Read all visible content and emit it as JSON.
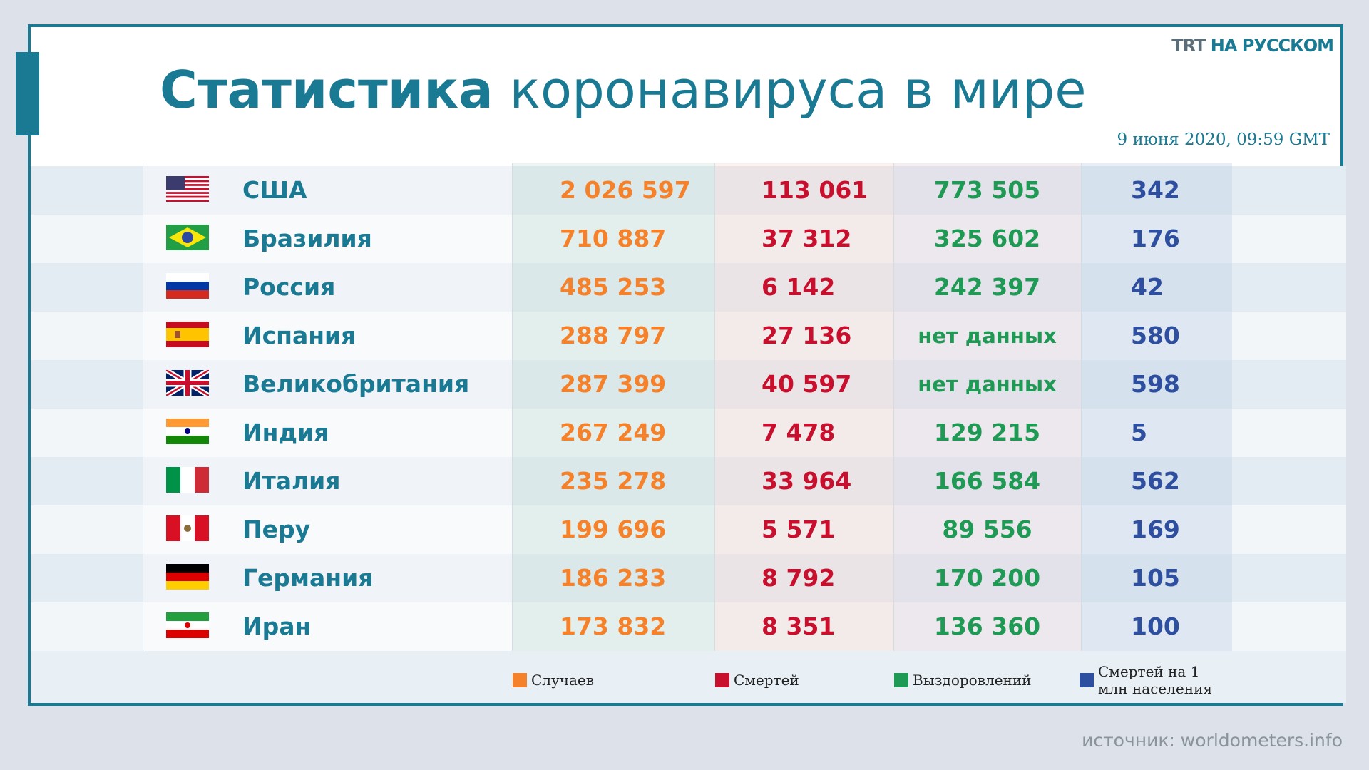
{
  "header": {
    "title_bold": "Статистика",
    "title_rest": "коронавируса в мире",
    "logo_bold": "TRT",
    "logo_rest": "НА РУССКОМ",
    "date": "9 июня 2020, 09:59 GMT"
  },
  "table": {
    "rows": [
      [
        "США",
        "2 026 597",
        "113 061",
        "773 505",
        "342"
      ],
      [
        "Бразилия",
        "710 887",
        "37 312",
        "325 602",
        "176"
      ],
      [
        "Россия",
        "485 253",
        "6 142",
        "242 397",
        "42"
      ],
      [
        "Испания",
        "288 797",
        "27 136",
        "нет данных",
        "580"
      ],
      [
        "Великобритания",
        "287 399",
        "40 597",
        "нет данных",
        "598"
      ],
      [
        "Индия",
        "267 249",
        "7 478",
        "129 215",
        "5"
      ],
      [
        "Италия",
        "235 278",
        "33 964",
        "166 584",
        "562"
      ],
      [
        "Перу",
        "199 696",
        "5 571",
        "89 556",
        "169"
      ],
      [
        "Германия",
        "186 233",
        "8 792",
        "170 200",
        "105"
      ],
      [
        "Иран",
        "173 832",
        "8 351",
        "136 360",
        "100"
      ]
    ]
  },
  "legend": {
    "items": [
      [
        "Случаев"
      ],
      [
        "Смертей"
      ],
      [
        "Выздоровлений"
      ],
      [
        "Смертей на 1",
        "млн населения"
      ]
    ]
  },
  "footer": {
    "source": "источник: worldometers.info"
  }
}
